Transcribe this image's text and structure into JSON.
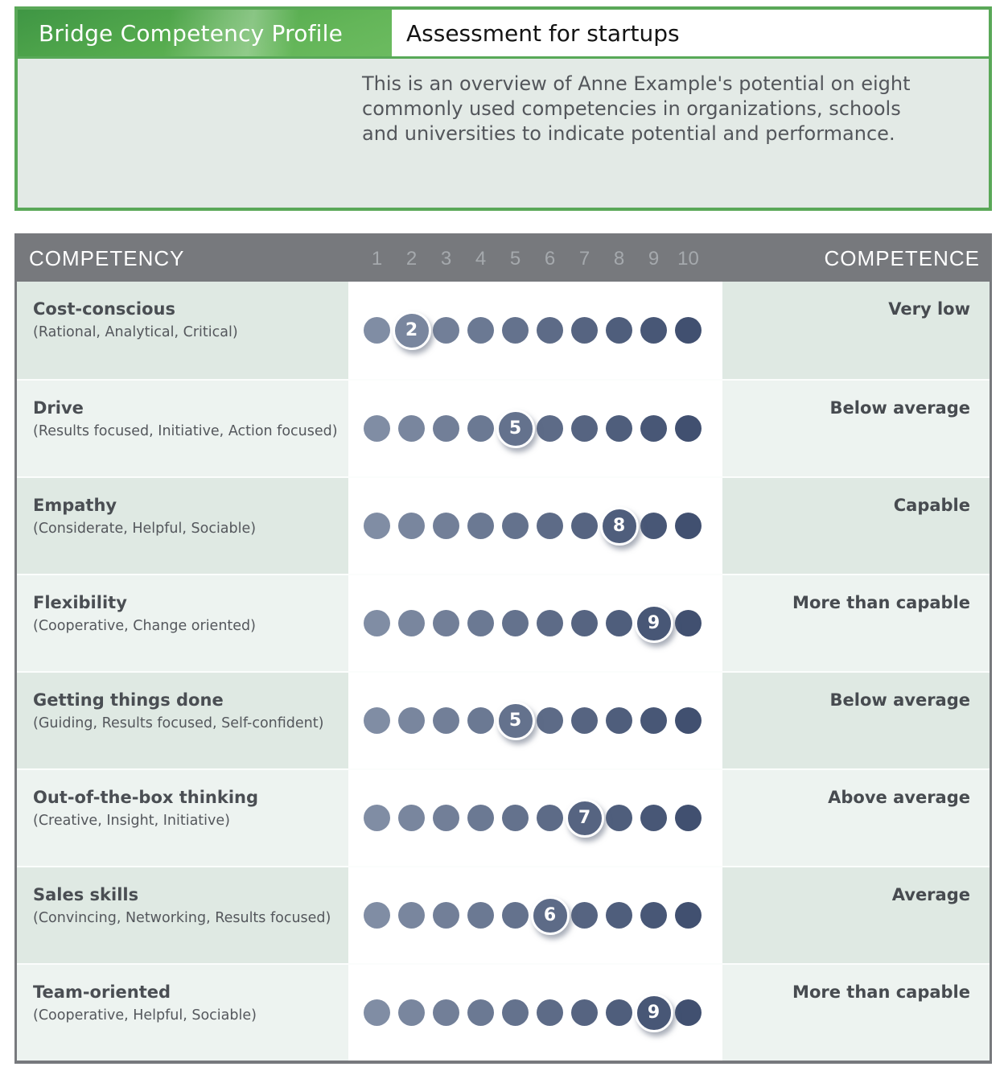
{
  "header": {
    "brand": "Bridge Competency Profile",
    "title": "Assessment for startups",
    "description": "This is an overview of Anne Example's potential on eight commonly used competencies in organizations, schools and universities to indicate potential and performance."
  },
  "table": {
    "competency_header": "COMPETENCY",
    "competence_header": "COMPETENCE",
    "scale": [
      "1",
      "2",
      "3",
      "4",
      "5",
      "6",
      "7",
      "8",
      "9",
      "10"
    ],
    "rows": [
      {
        "name": "Cost-conscious",
        "traits": "(Rational, Analytical, Critical)",
        "score": 2,
        "competence": "Very low"
      },
      {
        "name": "Drive",
        "traits": "(Results focused, Initiative, Action focused)",
        "score": 5,
        "competence": "Below average"
      },
      {
        "name": "Empathy",
        "traits": "(Considerate, Helpful, Sociable)",
        "score": 8,
        "competence": "Capable"
      },
      {
        "name": "Flexibility",
        "traits": "(Cooperative, Change oriented)",
        "score": 9,
        "competence": "More than capable"
      },
      {
        "name": "Getting things done",
        "traits": "(Guiding, Results focused, Self-confident)",
        "score": 5,
        "competence": "Below average"
      },
      {
        "name": "Out-of-the-box thinking",
        "traits": "(Creative, Insight, Initiative)",
        "score": 7,
        "competence": "Above average"
      },
      {
        "name": "Sales skills",
        "traits": "(Convincing, Networking, Results focused)",
        "score": 6,
        "competence": "Average"
      },
      {
        "name": "Team-oriented",
        "traits": "(Cooperative, Helpful, Sociable)",
        "score": 9,
        "competence": "More than capable"
      }
    ],
    "dot_colors": [
      "#808DA4",
      "#79869E",
      "#727F98",
      "#6B7993",
      "#64728D",
      "#5D6B87",
      "#566481",
      "#4F5E7C",
      "#485776",
      "#415070"
    ]
  },
  "colors": {
    "accent_green": "#5AA858",
    "banner_green_dark": "#3F9644",
    "banner_green_light": "#84CA6B",
    "header_bar_gray": "#77797D",
    "scale_number_gray": "#A5A9AD",
    "row_odd_bg": "#DFE9E3",
    "row_even_bg": "#EDF3F0",
    "name_text": "#4A4E53",
    "competence_text": "#474B50",
    "selected_ring": "#FFFFFF"
  },
  "chart_data": {
    "type": "table",
    "title": "Bridge Competency Profile - Assessment for startups",
    "scale_min": 1,
    "scale_max": 10,
    "categories": [
      "Cost-conscious",
      "Drive",
      "Empathy",
      "Flexibility",
      "Getting things done",
      "Out-of-the-box thinking",
      "Sales skills",
      "Team-oriented"
    ],
    "values": [
      2,
      5,
      8,
      9,
      5,
      7,
      6,
      9
    ],
    "labels": [
      "Very low",
      "Below average",
      "Capable",
      "More than capable",
      "Below average",
      "Above average",
      "Average",
      "More than capable"
    ]
  }
}
